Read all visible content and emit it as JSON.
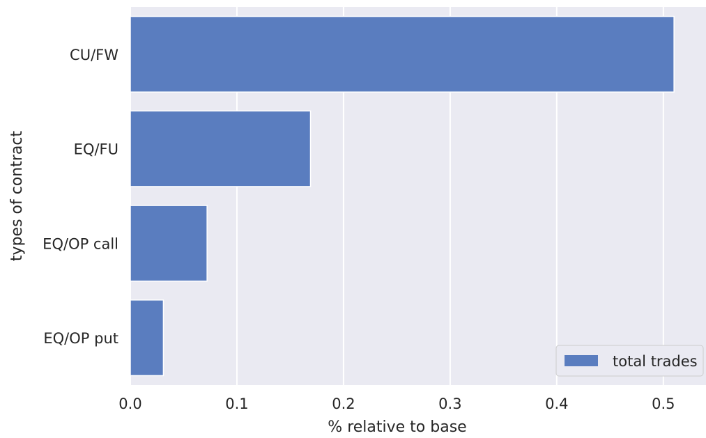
{
  "chart_data": {
    "type": "bar",
    "orientation": "horizontal",
    "title": "",
    "xlabel": "% relative to base",
    "ylabel": "types of contract",
    "categories": [
      "CU/FW",
      "EQ/FU",
      "EQ/OP call",
      "EQ/OP put"
    ],
    "series": [
      {
        "name": "total trades",
        "values": [
          0.51,
          0.169,
          0.072,
          0.031
        ]
      }
    ],
    "xlim": [
      0.0,
      0.54
    ],
    "xticks": [
      0.0,
      0.1,
      0.2,
      0.3,
      0.4,
      0.5
    ],
    "xtick_labels": [
      "0.0",
      "0.1",
      "0.2",
      "0.3",
      "0.4",
      "0.5"
    ],
    "grid": true,
    "legend_position": "lower-right",
    "colors": {
      "bar": "#5a7dbf",
      "background": "#eaeaf2",
      "grid": "#ffffff"
    }
  }
}
